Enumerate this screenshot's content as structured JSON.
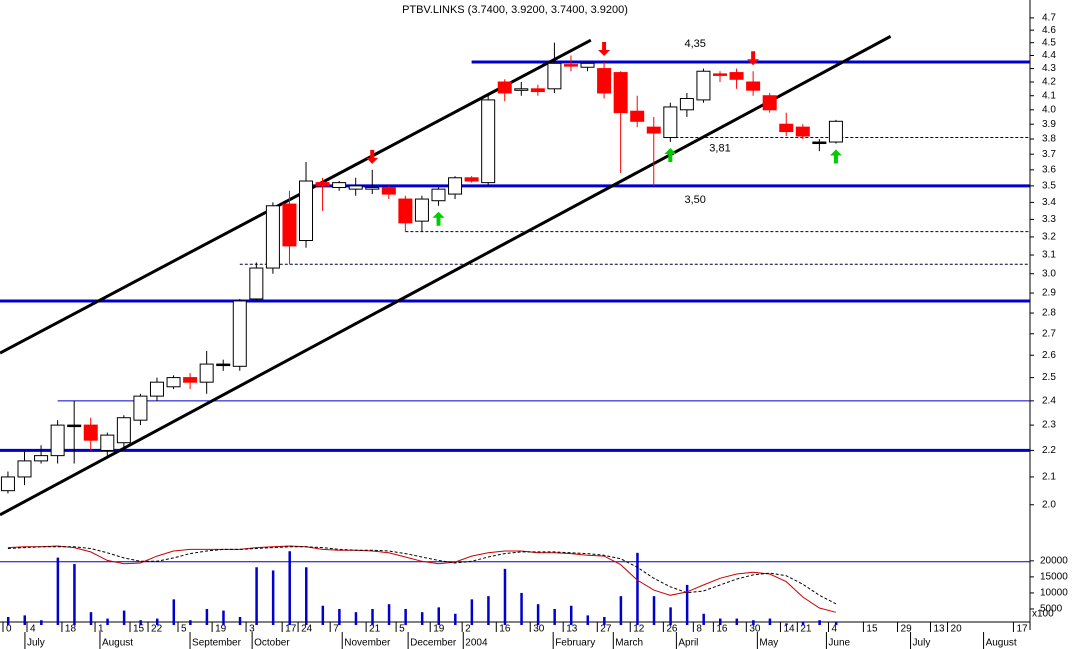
{
  "chart_data": {
    "type": "candlestick",
    "title": "PTBV.LINKS (3.7400, 3.9200, 3.7400, 3.9200)",
    "log_scale": true,
    "xlim": [
      -0.48,
      61.72
    ],
    "ylim": [
      1.88,
      4.85
    ],
    "yticks": [
      {
        "value": 2,
        "label": "2.0"
      },
      2.1,
      2.2,
      2.3,
      2.4,
      2.5,
      2.6,
      2.7,
      2.8,
      2.9,
      {
        "value": 3,
        "label": "3.0"
      },
      3.1,
      3.2,
      3.3,
      3.4,
      3.5,
      3.6,
      3.7,
      3.8,
      3.9,
      {
        "value": 4,
        "label": "4.0"
      },
      4.1,
      4.2,
      4.3,
      4.4,
      4.5,
      4.6,
      4.7
    ],
    "xticks": [
      {
        "value": -0.3,
        "label": "0"
      },
      {
        "value": 1.15,
        "label": "4"
      },
      {
        "value": 3.26,
        "label": "18"
      },
      {
        "value": 5.26,
        "label": "1"
      },
      {
        "value": 7.37,
        "label": "15"
      },
      {
        "value": 8.46,
        "label": "22"
      },
      {
        "value": 10.27,
        "label": "5"
      },
      {
        "value": 12.33,
        "label": "19"
      },
      {
        "value": 14.38,
        "label": "3"
      },
      {
        "value": 16.56,
        "label": "17"
      },
      {
        "value": 17.52,
        "label": "24"
      },
      {
        "value": 19.46,
        "label": "7"
      },
      {
        "value": 21.63,
        "label": "21"
      },
      {
        "value": 23.44,
        "label": "5"
      },
      {
        "value": 25.5,
        "label": "19"
      },
      {
        "value": 27.43,
        "label": "2"
      },
      {
        "value": 29.49,
        "label": "16"
      },
      {
        "value": 31.54,
        "label": "30"
      },
      {
        "value": 33.53,
        "label": "13"
      },
      {
        "value": 35.59,
        "label": "27"
      },
      {
        "value": 37.58,
        "label": "12"
      },
      {
        "value": 39.58,
        "label": "26"
      },
      {
        "value": 41.39,
        "label": "8"
      },
      {
        "value": 42.6,
        "label": "16"
      },
      {
        "value": 44.59,
        "label": "30"
      },
      {
        "value": 46.65,
        "label": "14"
      },
      {
        "value": 47.67,
        "label": "21"
      },
      {
        "value": 49.55,
        "label": "4"
      },
      {
        "value": 51.66,
        "label": "15"
      },
      {
        "value": 53.72,
        "label": "29"
      },
      {
        "value": 55.71,
        "label": "13"
      },
      {
        "value": 56.74,
        "label": "20"
      },
      {
        "value": 60.72,
        "label": "17"
      }
    ],
    "month_labels": [
      {
        "value": 1.63,
        "label": "July"
      },
      {
        "value": 6.16,
        "label": "August"
      },
      {
        "value": 11.6,
        "label": "September"
      },
      {
        "value": 15.35,
        "label": "October"
      },
      {
        "value": 20.79,
        "label": "November"
      },
      {
        "value": 24.77,
        "label": "December"
      },
      {
        "value": 28.1,
        "label": "2004"
      },
      {
        "value": 33.53,
        "label": "February"
      },
      {
        "value": 37.16,
        "label": "March"
      },
      {
        "value": 40.97,
        "label": "April"
      },
      {
        "value": 45.86,
        "label": "May"
      },
      {
        "value": 50.03,
        "label": "June"
      },
      {
        "value": 55.11,
        "label": "July"
      },
      {
        "value": 59.52,
        "label": "August"
      }
    ],
    "open": [
      2.05,
      2.1,
      2.16,
      2.18,
      2.3,
      2.3,
      2.2,
      2.23,
      2.32,
      2.42,
      2.46,
      2.5,
      2.48,
      2.56,
      2.55,
      2.87,
      3.03,
      3.39,
      3.18,
      3.52,
      3.49,
      3.48,
      3.48,
      3.49,
      3.42,
      3.29,
      3.41,
      3.45,
      3.55,
      3.52,
      4.2,
      4.14,
      4.15,
      4.15,
      4.33,
      4.31,
      4.3,
      4.27,
      3.99,
      3.88,
      3.81,
      4.0,
      4.07,
      4.26,
      4.27,
      4.2,
      4.1,
      3.9,
      3.88,
      3.78,
      3.78
    ],
    "high": [
      2.12,
      2.2,
      2.22,
      2.32,
      2.4,
      2.33,
      2.27,
      2.34,
      2.43,
      2.5,
      2.51,
      2.52,
      2.62,
      2.58,
      2.87,
      3.06,
      3.4,
      3.47,
      3.65,
      3.55,
      3.53,
      3.55,
      3.6,
      3.5,
      3.44,
      3.44,
      3.49,
      3.56,
      3.56,
      4.1,
      4.22,
      4.2,
      4.18,
      4.5,
      4.4,
      4.35,
      4.35,
      4.28,
      4.1,
      3.95,
      4.05,
      4.12,
      4.3,
      4.28,
      4.3,
      4.28,
      4.12,
      3.98,
      3.9,
      3.8,
      3.93
    ],
    "low": [
      2.04,
      2.07,
      2.15,
      2.15,
      2.15,
      2.2,
      2.18,
      2.2,
      2.3,
      2.4,
      2.45,
      2.45,
      2.43,
      2.53,
      2.53,
      2.86,
      3.0,
      3.05,
      3.14,
      3.35,
      3.47,
      3.44,
      3.45,
      3.42,
      3.23,
      3.23,
      3.38,
      3.42,
      3.52,
      3.5,
      4.06,
      4.1,
      4.1,
      4.12,
      4.28,
      4.28,
      4.08,
      3.58,
      3.88,
      3.5,
      3.78,
      3.95,
      4.05,
      4.2,
      4.15,
      4.1,
      3.98,
      3.82,
      3.8,
      3.72,
      3.77
    ],
    "close": [
      2.1,
      2.16,
      2.18,
      2.3,
      2.3,
      2.24,
      2.26,
      2.33,
      2.42,
      2.48,
      2.5,
      2.48,
      2.56,
      2.56,
      2.86,
      3.03,
      3.38,
      3.15,
      3.53,
      3.5,
      3.52,
      3.5,
      3.49,
      3.45,
      3.28,
      3.42,
      3.48,
      3.55,
      3.53,
      4.07,
      4.12,
      4.15,
      4.13,
      4.34,
      4.32,
      4.34,
      4.12,
      3.98,
      3.92,
      3.84,
      4.02,
      4.08,
      4.28,
      4.25,
      4.22,
      4.14,
      4.0,
      3.85,
      3.82,
      3.78,
      3.92
    ],
    "up_color": "#ffffff",
    "down_color": "#ff0000",
    "flat_color": "#000000",
    "trend_lines": [
      {
        "x": [
          -0.48,
          35.2
        ],
        "y": [
          2.61,
          4.52
        ]
      },
      {
        "x": [
          -0.48,
          53.3
        ],
        "y": [
          1.965,
          4.55
        ]
      }
    ],
    "levels": [
      {
        "value": 4.35,
        "from": 28,
        "style": "solid",
        "label": "4,35"
      },
      {
        "value": 3.5,
        "from": 18,
        "style": "solid",
        "label": "3,50"
      },
      {
        "value": 2.86,
        "from": -0.48,
        "style": "solid"
      },
      {
        "value": 2.2,
        "from": -0.48,
        "style": "solid"
      },
      {
        "value": 2.4,
        "from": 3,
        "style": "thin"
      },
      {
        "value": 3.81,
        "from": 40,
        "style": "dashed",
        "label": "3,81"
      },
      {
        "value": 3.23,
        "from": 24,
        "style": "dashed"
      },
      {
        "value": 3.05,
        "from": 14,
        "style": "dashed"
      }
    ],
    "level_color": "#0000cc",
    "signals": {
      "sell": [
        22,
        36,
        45
      ],
      "buy": [
        26,
        40,
        50
      ]
    },
    "volume": {
      "unit_label": "x100",
      "ylim": [
        0,
        26500
      ],
      "yticks": [
        5000,
        10000,
        15000,
        20000
      ],
      "color": "#0000cc",
      "level": 19700,
      "values": [
        2500,
        3000,
        1500,
        21000,
        19000,
        4000,
        2000,
        4500,
        1500,
        2000,
        8000,
        1500,
        5000,
        4500,
        2500,
        18000,
        17000,
        23000,
        18000,
        6000,
        5000,
        4000,
        5000,
        6500,
        5000,
        4000,
        5500,
        3500,
        8000,
        9000,
        17500,
        10000,
        6500,
        5000,
        6000,
        3000,
        2500,
        9000,
        22500,
        9000,
        5500,
        12500,
        3500,
        2000,
        2000,
        1500,
        2000,
        500,
        1000,
        1500,
        1000
      ]
    },
    "oscillator": {
      "ylim": [
        0,
        100
      ],
      "series": [
        {
          "color": "#cc0000",
          "style": "solid",
          "values": [
            91,
            92,
            92,
            93,
            91,
            86,
            76,
            72,
            73,
            81,
            87,
            89,
            89,
            89,
            89,
            91,
            92,
            93,
            92,
            89,
            88,
            88,
            87,
            85,
            80,
            75,
            72,
            74,
            81,
            85,
            87,
            87,
            85,
            85,
            84,
            82,
            81,
            71,
            53,
            41,
            35,
            39,
            47,
            55,
            60,
            62,
            60,
            51,
            33,
            20,
            15
          ]
        },
        {
          "color": "#000000",
          "style": "dashed",
          "values": [
            90,
            91,
            92,
            92,
            92,
            90,
            85,
            79,
            75,
            75,
            79,
            84,
            87,
            89,
            89,
            90,
            91,
            92,
            92,
            91,
            89,
            88,
            88,
            87,
            84,
            80,
            76,
            73,
            75,
            80,
            84,
            86,
            86,
            86,
            85,
            84,
            82,
            78,
            68,
            55,
            45,
            38,
            40,
            47,
            54,
            59,
            61,
            58,
            48,
            35,
            25
          ]
        }
      ]
    }
  }
}
